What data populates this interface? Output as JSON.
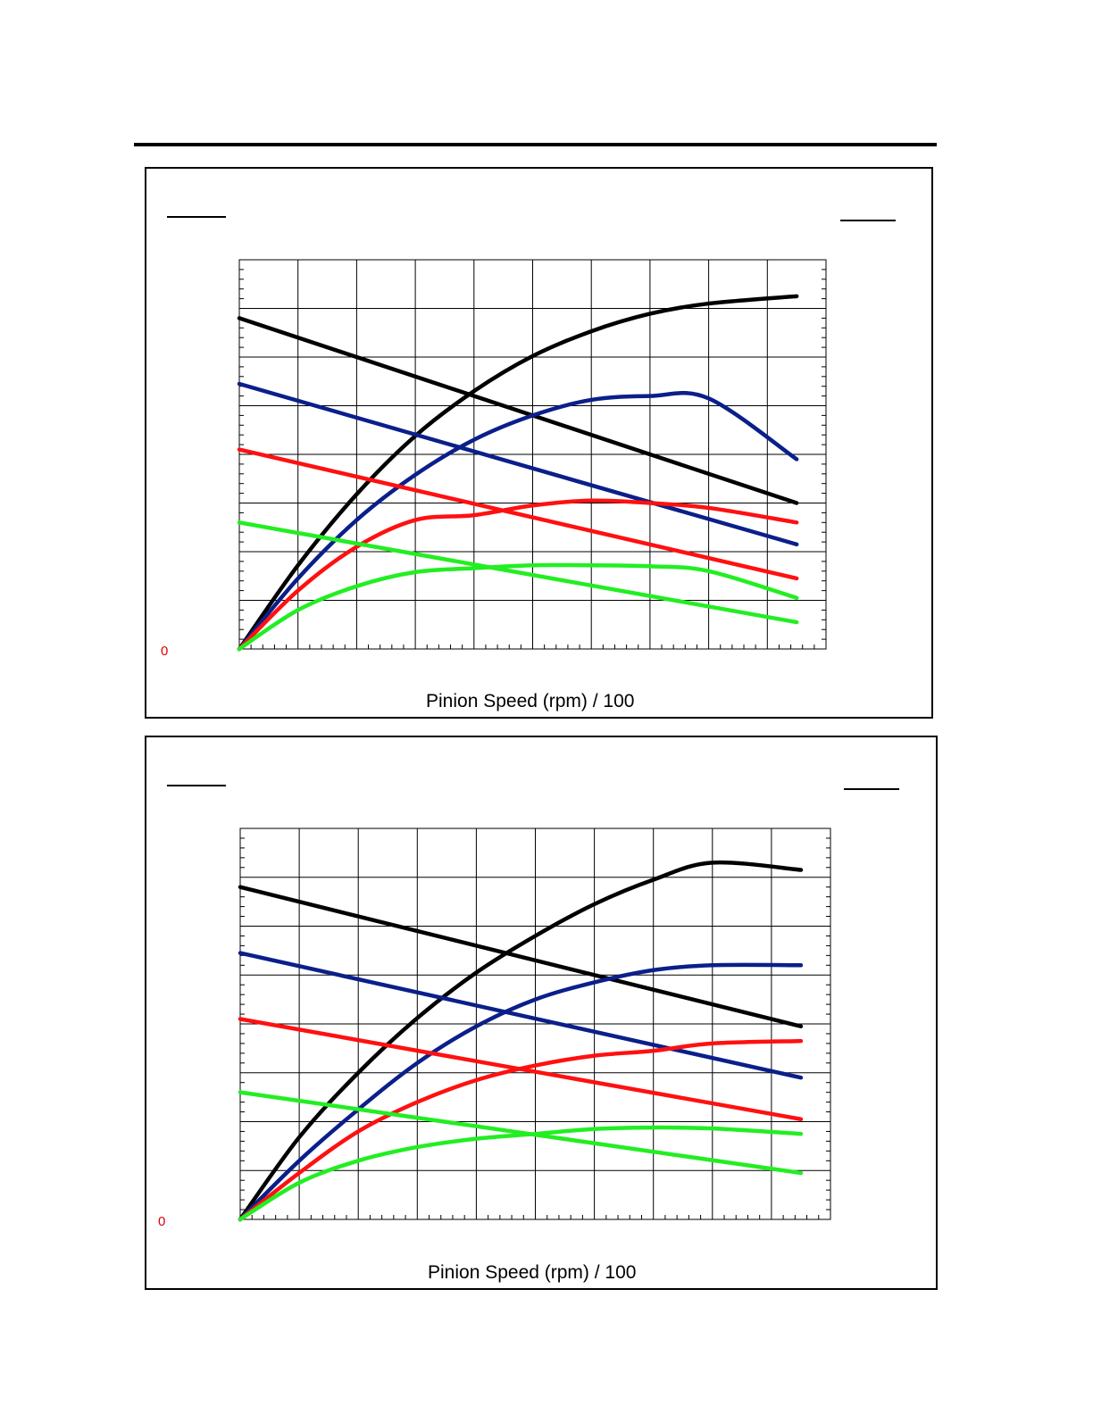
{
  "colors": {
    "black": "#000000",
    "blue": "#0b1f8a",
    "red": "#ff1010",
    "green": "#22ee22",
    "zero_label": "#e00000"
  },
  "chart_data": [
    {
      "type": "line",
      "title": "",
      "xlabel": "Pinion Speed (rpm) / 100",
      "ylabel": "",
      "zero_label": "0",
      "xlim": [
        0,
        10
      ],
      "ylim": [
        0,
        8
      ],
      "grid": true,
      "series": [
        {
          "color": "black",
          "x": [
            0,
            1,
            2,
            3,
            4,
            5,
            6,
            7,
            8,
            9.5
          ],
          "y": [
            0,
            1.72,
            3.18,
            4.38,
            5.3,
            6.02,
            6.53,
            6.89,
            7.1,
            7.25
          ]
        },
        {
          "color": "black",
          "x": [
            0,
            9.5
          ],
          "y": [
            6.8,
            3.0
          ]
        },
        {
          "color": "blue",
          "x": [
            0,
            1,
            2,
            3,
            4,
            5,
            6,
            7,
            8,
            9.5
          ],
          "y": [
            0,
            1.45,
            2.65,
            3.58,
            4.3,
            4.8,
            5.12,
            5.2,
            5.15,
            3.9
          ]
        },
        {
          "color": "blue",
          "x": [
            0,
            9.5
          ],
          "y": [
            5.45,
            2.15
          ]
        },
        {
          "color": "red",
          "x": [
            0,
            1,
            2,
            3,
            4,
            5,
            6,
            7,
            8,
            9.5
          ],
          "y": [
            0,
            1.2,
            2.1,
            2.65,
            2.75,
            2.95,
            3.05,
            3.0,
            2.9,
            2.6
          ]
        },
        {
          "color": "red",
          "x": [
            0,
            9.5
          ],
          "y": [
            4.1,
            1.45
          ]
        },
        {
          "color": "green",
          "x": [
            0,
            1,
            2,
            3,
            4,
            5,
            6,
            7,
            8,
            9.5
          ],
          "y": [
            0,
            0.8,
            1.29,
            1.58,
            1.66,
            1.72,
            1.72,
            1.7,
            1.6,
            1.05
          ]
        },
        {
          "color": "green",
          "x": [
            0,
            9.5
          ],
          "y": [
            2.6,
            0.55
          ]
        }
      ]
    },
    {
      "type": "line",
      "title": "",
      "xlabel": "Pinion Speed (rpm) / 100",
      "ylabel": "",
      "zero_label": "0",
      "xlim": [
        0,
        10
      ],
      "ylim": [
        0,
        8
      ],
      "grid": true,
      "series": [
        {
          "color": "black",
          "x": [
            0,
            1,
            2,
            3,
            4,
            5,
            6,
            7,
            8,
            9.5
          ],
          "y": [
            0,
            1.68,
            3.0,
            4.12,
            5.05,
            5.8,
            6.45,
            6.95,
            7.3,
            7.15
          ]
        },
        {
          "color": "black",
          "x": [
            0,
            9.5
          ],
          "y": [
            6.8,
            3.95
          ]
        },
        {
          "color": "blue",
          "x": [
            0,
            1,
            2,
            3,
            4,
            5,
            6,
            7,
            8,
            9.5
          ],
          "y": [
            0,
            1.2,
            2.25,
            3.2,
            3.95,
            4.5,
            4.85,
            5.1,
            5.2,
            5.2
          ]
        },
        {
          "color": "blue",
          "x": [
            0,
            9.5
          ],
          "y": [
            5.45,
            2.9
          ]
        },
        {
          "color": "red",
          "x": [
            0,
            1,
            2,
            3,
            4,
            5,
            6,
            7,
            8,
            9.5
          ],
          "y": [
            0,
            0.95,
            1.8,
            2.4,
            2.85,
            3.15,
            3.35,
            3.45,
            3.6,
            3.65
          ]
        },
        {
          "color": "red",
          "x": [
            0,
            9.5
          ],
          "y": [
            4.1,
            2.05
          ]
        },
        {
          "color": "green",
          "x": [
            0,
            1,
            2,
            3,
            4,
            5,
            6,
            7,
            8,
            9.5
          ],
          "y": [
            0,
            0.75,
            1.2,
            1.48,
            1.65,
            1.75,
            1.85,
            1.88,
            1.86,
            1.75
          ]
        },
        {
          "color": "green",
          "x": [
            0,
            9.5
          ],
          "y": [
            2.6,
            0.95
          ]
        }
      ]
    }
  ]
}
